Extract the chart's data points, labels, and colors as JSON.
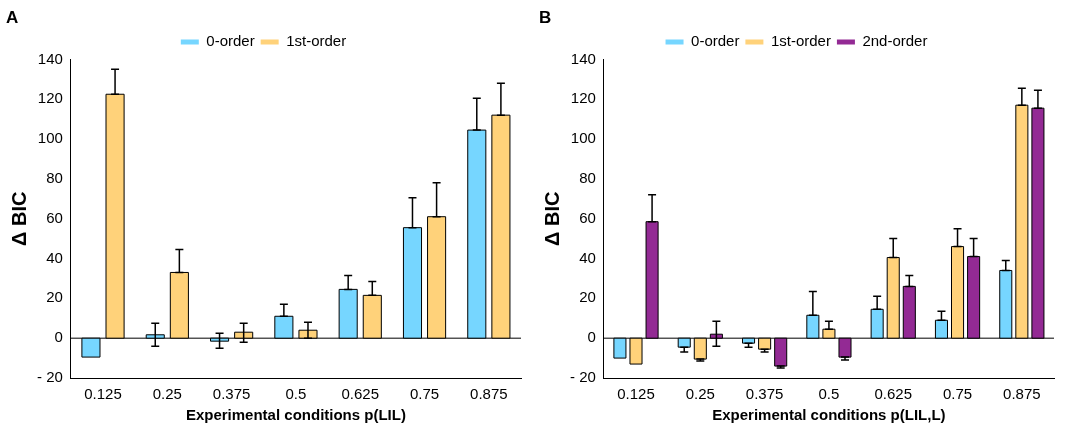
{
  "chart_data": [
    {
      "type": "bar",
      "title": "A",
      "xlabel": "Experimental conditions p(LIL)",
      "ylabel": "Δ BIC",
      "categories": [
        "0.125",
        "0.25",
        "0.375",
        "0.5",
        "0.625",
        "0.75",
        "0.875"
      ],
      "ylim": [
        -20,
        140
      ],
      "yticks": [
        {
          "value": -20,
          "label": "- 20"
        },
        0,
        20,
        40,
        60,
        80,
        100,
        120,
        140
      ],
      "grid": false,
      "legend": "top",
      "ref_lines": [
        {
          "axis": "y",
          "value": 0,
          "color": "#000000"
        }
      ],
      "series": [
        {
          "name": "0-order",
          "color": "#76d6ff",
          "values": [
            -9.5,
            1.7,
            -1.5,
            11,
            24.5,
            55.5,
            104.5
          ],
          "errors": [
            null,
            [
              -4,
              7.5
            ],
            [
              -5,
              2.5
            ],
            [
              11,
              17
            ],
            [
              24.5,
              31.5
            ],
            [
              55.5,
              70.5
            ],
            [
              104.5,
              120.5
            ]
          ]
        },
        {
          "name": "1st-order",
          "color": "#ffd27a",
          "values": [
            122.5,
            33,
            3,
            4,
            21.5,
            61,
            112
          ],
          "errors": [
            [
              122.5,
              135
            ],
            [
              33,
              44.5
            ],
            [
              -2,
              7.5
            ],
            [
              0,
              8
            ],
            [
              21.5,
              28.5
            ],
            [
              61,
              78
            ],
            [
              112,
              128
            ]
          ]
        }
      ]
    },
    {
      "type": "bar",
      "title": "B",
      "xlabel": "Experimental conditions p(LIL,L)",
      "ylabel": "Δ BIC",
      "categories": [
        "0.125",
        "0.25",
        "0.375",
        "0.5",
        "0.625",
        "0.75",
        "0.875"
      ],
      "ylim": [
        -20,
        140
      ],
      "yticks": [
        {
          "value": -20,
          "label": "- 20"
        },
        0,
        20,
        40,
        60,
        80,
        100,
        120,
        140
      ],
      "grid": false,
      "legend": "top",
      "ref_lines": [
        {
          "axis": "y",
          "value": 0,
          "color": "#000000"
        }
      ],
      "series": [
        {
          "name": "0-order",
          "color": "#76d6ff",
          "values": [
            -10,
            -4.5,
            -2.5,
            11.5,
            14.5,
            9,
            34
          ],
          "errors": [
            null,
            [
              -7,
              -4.5
            ],
            [
              -4.5,
              -2.5
            ],
            [
              11.5,
              23.5
            ],
            [
              14.5,
              21
            ],
            [
              9,
              13.5
            ],
            [
              34,
              39
            ]
          ]
        },
        {
          "name": "1st-order",
          "color": "#ffd27a",
          "values": [
            -13,
            -10.5,
            -5.5,
            4.5,
            40.5,
            46,
            117
          ],
          "errors": [
            null,
            [
              -11.5,
              -10.5
            ],
            [
              -7,
              -5.5
            ],
            [
              4.5,
              8.5
            ],
            [
              40.5,
              50
            ],
            [
              46,
              55
            ],
            [
              117,
              125.5
            ]
          ]
        },
        {
          "name": "2nd-order",
          "color": "#932a94",
          "values": [
            58.5,
            2,
            -14,
            -9.5,
            26,
            41,
            115.5
          ],
          "errors": [
            [
              58.5,
              72
            ],
            [
              -4,
              8.5
            ],
            [
              -15,
              -14
            ],
            [
              -11,
              -9.5
            ],
            [
              26,
              31.5
            ],
            [
              41,
              50
            ],
            [
              115.5,
              124.5
            ]
          ]
        }
      ]
    }
  ]
}
